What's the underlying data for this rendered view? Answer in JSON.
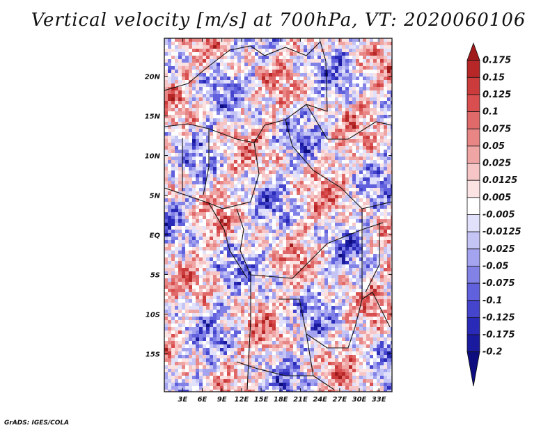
{
  "chart_data": {
    "type": "heatmap",
    "title": "Vertical velocity [m/s] at 700hPa, VT: 2020060106",
    "x_tick_labels": [
      "3E",
      "6E",
      "9E",
      "12E",
      "15E",
      "18E",
      "21E",
      "24E",
      "27E",
      "30E",
      "33E"
    ],
    "y_tick_labels": [
      "20N",
      "15N",
      "10N",
      "5N",
      "EQ",
      "5S",
      "10S",
      "15S"
    ],
    "x_ticks_deg": [
      3,
      6,
      9,
      12,
      15,
      18,
      21,
      24,
      27,
      30,
      33
    ],
    "y_ticks_deg": [
      20,
      15,
      10,
      5,
      0,
      -5,
      -10,
      -15
    ],
    "lon_range": [
      0.2,
      35
    ],
    "lat_range": [
      -19.8,
      24.8
    ],
    "colorbar": {
      "labels": [
        "0.175",
        "0.15",
        "0.125",
        "0.1",
        "0.075",
        "0.05",
        "0.025",
        "0.0125",
        "0.005",
        "-0.005",
        "-0.0125",
        "-0.025",
        "-0.05",
        "-0.075",
        "-0.1",
        "-0.125",
        "-0.175",
        "-0.2"
      ],
      "colors": [
        "#a01a1a",
        "#b82727",
        "#cc3b3b",
        "#d94f4f",
        "#e06a6a",
        "#e88686",
        "#f0a5a5",
        "#f6c6c6",
        "#fbe3e3",
        "#ffffff",
        "#e1e1fb",
        "#c4c4f5",
        "#a3a3ef",
        "#8282e6",
        "#6161dd",
        "#4444cc",
        "#2a2ab8",
        "#1a1a9e",
        "#0d0d80"
      ],
      "extend": "both"
    },
    "grid": false
  },
  "credit": "GrADS: IGES/COLA"
}
